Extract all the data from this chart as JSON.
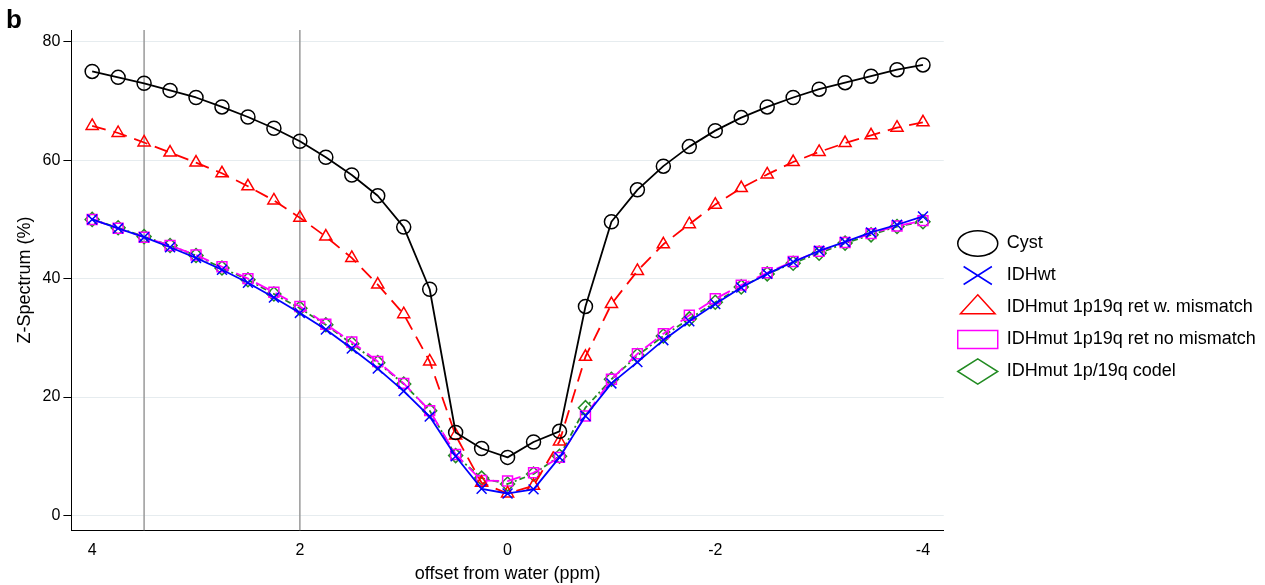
{
  "chart_data": {
    "type": "line",
    "title": "b",
    "xlabel": "offset from water (ppm)",
    "ylabel": "Z-Spectrum (%)",
    "x": [
      4,
      3.75,
      3.5,
      3.25,
      3,
      2.75,
      2.5,
      2.25,
      2,
      1.75,
      1.5,
      1.25,
      1,
      0.75,
      0.5,
      0.25,
      0,
      -0.25,
      -0.5,
      -0.75,
      -1,
      -1.25,
      -1.5,
      -1.75,
      -2,
      -2.25,
      -2.5,
      -2.75,
      -3,
      -3.25,
      -3.5,
      -3.75,
      -4
    ],
    "xlim": [
      4.2,
      -4.2
    ],
    "xticks": [
      4,
      2,
      0,
      -2,
      -4
    ],
    "ylim": [
      -2.5,
      82
    ],
    "yticks": [
      0,
      20,
      40,
      60,
      80
    ],
    "grid": "y",
    "legend": "right",
    "ref_lines": [
      {
        "axis": "x",
        "value": 3.5,
        "color": "#999999"
      },
      {
        "axis": "x",
        "value": 2,
        "color": "#999999"
      }
    ],
    "series": [
      {
        "name": "Cyst",
        "color": "#000000",
        "marker": "circle",
        "line_style": "solid",
        "values": [
          75,
          74,
          73,
          71.8,
          70.6,
          69,
          67.3,
          65.4,
          63.2,
          60.5,
          57.5,
          54,
          48.7,
          38.2,
          14,
          11.3,
          9.8,
          12.4,
          14.2,
          35.3,
          49.6,
          55,
          59,
          62.3,
          65,
          67.2,
          69,
          70.6,
          72,
          73.1,
          74.2,
          75.3,
          76.1
        ]
      },
      {
        "name": "IDHwt",
        "color": "#0000ff",
        "marker": "cross",
        "line_style": "solid",
        "values": [
          50,
          48.5,
          47,
          45.3,
          43.5,
          41.5,
          39.3,
          36.8,
          34.2,
          31.4,
          28.2,
          24.8,
          21,
          16.7,
          10,
          4.5,
          3.7,
          4.4,
          9.8,
          16.8,
          22.3,
          25.9,
          29.6,
          32.8,
          35.7,
          38.5,
          40.8,
          42.8,
          44.7,
          46.2,
          47.8,
          49.1,
          50.5
        ]
      },
      {
        "name": "IDHmut 1p19q ret w. mismatch",
        "color": "#ff0000",
        "marker": "triangle",
        "line_style": "dashed",
        "values": [
          65.8,
          64.6,
          63,
          61.3,
          59.6,
          57.8,
          55.6,
          53.2,
          50.3,
          47.1,
          43.5,
          39,
          34,
          26,
          13.5,
          5.5,
          3.7,
          5,
          12.5,
          26.8,
          35.7,
          41.3,
          45.8,
          49.2,
          52.5,
          55.3,
          57.6,
          59.7,
          61.4,
          62.9,
          64.2,
          65.5,
          66.4
        ]
      },
      {
        "name": "IDHmut 1p19q ret no mismatch",
        "color": "#ff00ff",
        "marker": "square",
        "line_style": "dashed",
        "values": [
          50,
          48.5,
          47,
          45.6,
          44,
          42,
          40,
          37.7,
          35.3,
          32.3,
          29.3,
          26,
          22.3,
          17.7,
          10.3,
          5.9,
          5.8,
          7.2,
          9.8,
          16.8,
          23,
          27.3,
          30.7,
          33.8,
          36.6,
          38.9,
          41,
          42.9,
          44.6,
          46.1,
          47.6,
          48.9,
          49.8
        ]
      },
      {
        "name": "IDHmut 1p/19q codel",
        "color": "#228b22",
        "marker": "diamond",
        "line_style": "dotted",
        "values": [
          50,
          48.6,
          47.1,
          45.6,
          43.9,
          41.8,
          39.8,
          37.4,
          35,
          32.2,
          29,
          25.8,
          22.2,
          17.7,
          10.1,
          6.3,
          5.3,
          7,
          10,
          18.2,
          23,
          27,
          30.3,
          33.2,
          36,
          38.6,
          40.8,
          42.6,
          44.3,
          46,
          47.4,
          48.8,
          49.6
        ]
      }
    ]
  }
}
